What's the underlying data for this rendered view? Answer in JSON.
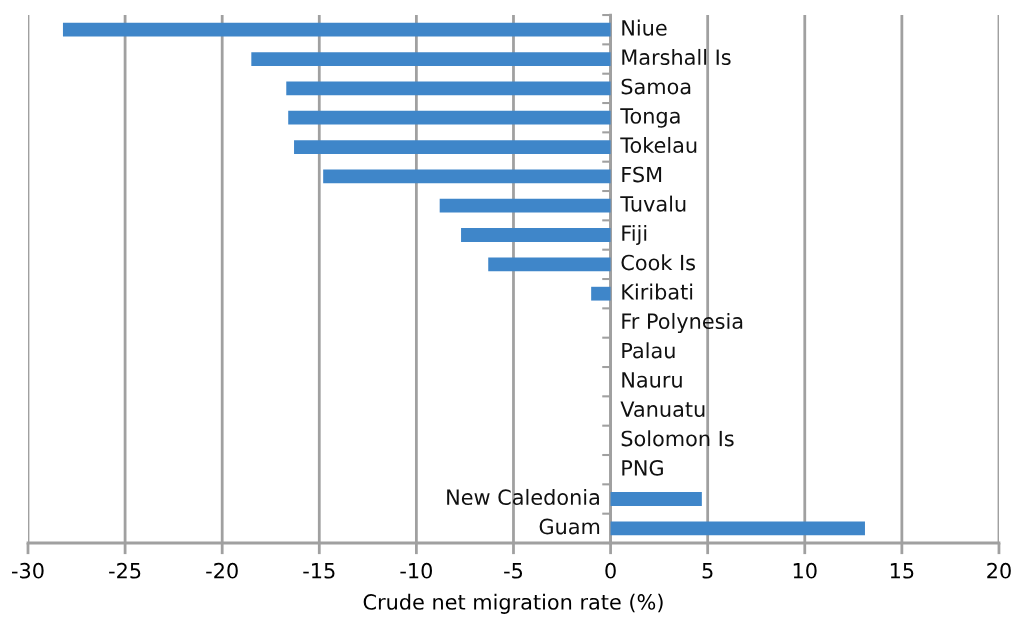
{
  "chart_data": {
    "type": "bar",
    "orientation": "horizontal",
    "xlabel": "Crude net migration rate (%)",
    "categories": [
      "Niue",
      "Marshall Is",
      "Samoa",
      "Tonga",
      "Tokelau",
      "FSM",
      "Tuvalu",
      "Fiji",
      "Cook Is",
      "Kiribati",
      "Fr Polynesia",
      "Palau",
      "Nauru",
      "Vanuatu",
      "Solomon Is",
      "PNG",
      "New Caledonia",
      "Guam"
    ],
    "values": [
      -28.2,
      -18.5,
      -16.7,
      -16.6,
      -16.3,
      -14.8,
      -8.8,
      -7.7,
      -6.3,
      -1.0,
      0,
      0,
      0,
      0,
      0,
      0,
      4.7,
      13.1
    ],
    "color": "#3f86c9",
    "xlim": [
      -30,
      20
    ],
    "xticks": [
      -30,
      -25,
      -20,
      -15,
      -10,
      -5,
      0,
      5,
      10,
      15,
      20
    ],
    "grid": "x"
  }
}
